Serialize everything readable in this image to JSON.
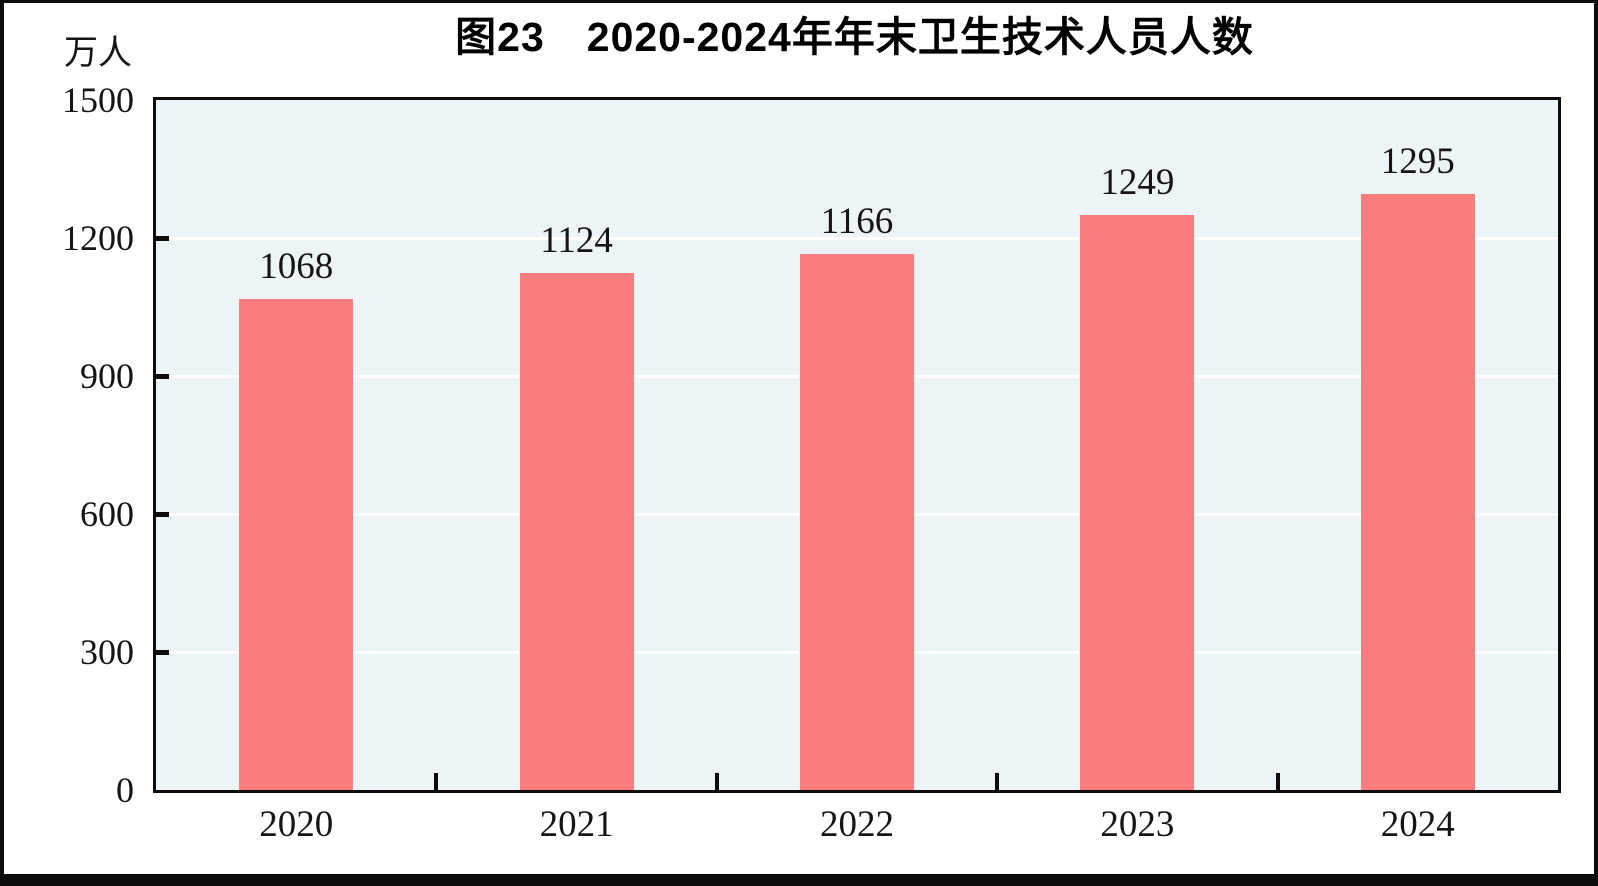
{
  "chart_data": {
    "type": "bar",
    "title": "图23　2020-2024年年末卫生技术人员人数",
    "unit_label": "万人",
    "categories": [
      "2020",
      "2021",
      "2022",
      "2023",
      "2024"
    ],
    "values": [
      1068,
      1124,
      1166,
      1249,
      1295
    ],
    "data_labels": [
      1068,
      1124,
      1166,
      1249,
      1295
    ],
    "ylim": [
      0,
      1500
    ],
    "yticks": [
      0,
      300,
      600,
      900,
      1200,
      1500
    ],
    "xlabel": "",
    "ylabel": "万人",
    "grid": "horizontal",
    "legend": "none",
    "colors": {
      "bar_fill": "#fb7e7e",
      "plot_background": "#edf4f8",
      "gridline": "#ffffff",
      "axis_frame": "#0d0d0d",
      "text": "#151515",
      "page_bottom_rule": "#0d0d0d"
    }
  }
}
